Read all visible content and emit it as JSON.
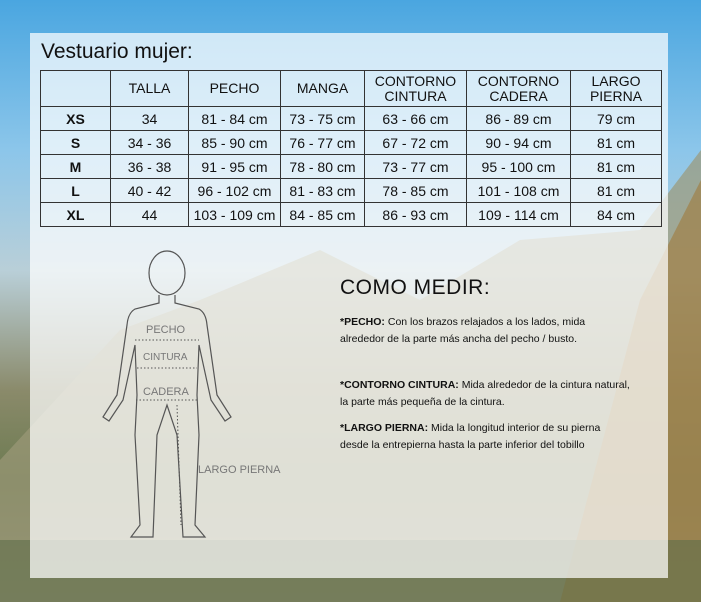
{
  "title": "Vestuario mujer:",
  "table": {
    "headers": [
      "",
      "TALLA",
      "PECHO",
      "MANGA",
      "CONTORNO CINTURA",
      "CONTORNO CADERA",
      "LARGO PIERNA"
    ],
    "rows": [
      [
        "XS",
        "34",
        "81 - 84 cm",
        "73 - 75 cm",
        "63 - 66 cm",
        "86 - 89 cm",
        "79 cm"
      ],
      [
        "S",
        "34 - 36",
        "85 - 90 cm",
        "76 - 77 cm",
        "67 - 72 cm",
        "90 - 94 cm",
        "81 cm"
      ],
      [
        "M",
        "36 - 38",
        "91 - 95 cm",
        "78 - 80 cm",
        "73 - 77 cm",
        "95 - 100 cm",
        "81 cm"
      ],
      [
        "L",
        "40 - 42",
        "96 - 102 cm",
        "81 - 83 cm",
        "78 - 85 cm",
        "101 - 108 cm",
        "81 cm"
      ],
      [
        "XL",
        "44",
        "103 - 109 cm",
        "84 - 85 cm",
        "86 - 93 cm",
        "109 - 114 cm",
        "84 cm"
      ]
    ]
  },
  "figure": {
    "labels": {
      "pecho": "PECHO",
      "cintura": "CINTURA",
      "cadera": "CADERA",
      "largo": "LARGO PIERNA"
    }
  },
  "como_medir": {
    "title": "COMO MEDIR:",
    "items": [
      {
        "label": "*PECHO:",
        "text": " Con los brazos relajados a los lados, mida alrededor de la parte más ancha del pecho / busto."
      },
      {
        "label": "*CONTORNO CINTURA:",
        "text": " Mida alrededor de la cintura natural, la parte más pequeña de la cintura."
      },
      {
        "label": "*LARGO PIERNA:",
        "text": " Mida la longitud interior de su pierna desde la entrepierna hasta la parte inferior del tobillo"
      }
    ]
  }
}
